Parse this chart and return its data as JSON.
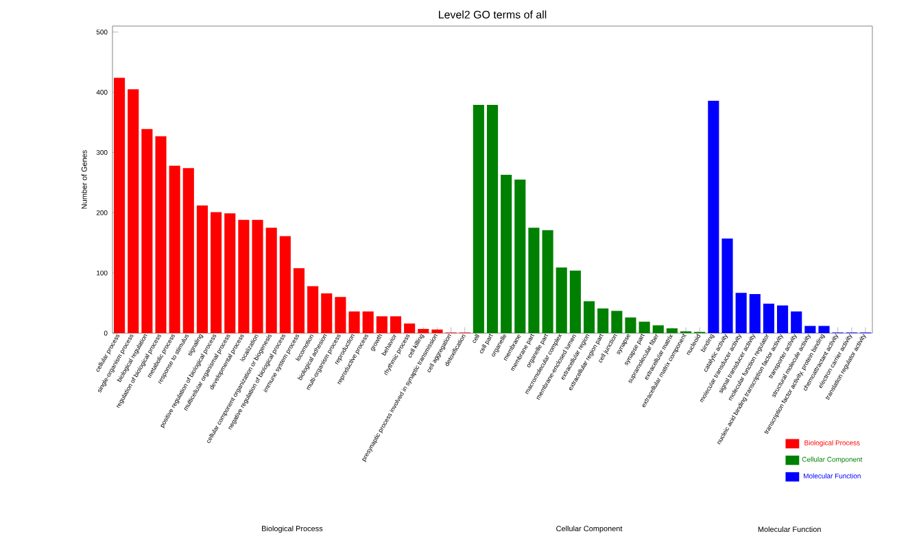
{
  "chart_data": {
    "type": "bar",
    "title": "Level2 GO terms of all",
    "ylabel": "Number of Genes",
    "categories": [
      "cellular process",
      "single-organism process",
      "biological regulation",
      "regulation of biological process",
      "metabolic process",
      "response to stimulus",
      "signaling",
      "positive regulation of biological process",
      "multicellular organismal process",
      "developmental process",
      "localization",
      "cellular component organization or biogenesis",
      "negative regulation of biological process",
      "immune system process",
      "locomotion",
      "biological adhesion",
      "multi-organism process",
      "reproduction",
      "reproductive process",
      "growth",
      "behavior",
      "rhythmic process",
      "cell killing",
      "presynaptic process involved in synaptic transmission",
      "cell aggregation",
      "detoxification",
      "cell",
      "cell part",
      "organelle",
      "membrane",
      "membrane part",
      "organelle part",
      "macromolecular complex",
      "membrane-enclosed lumen",
      "extracellular region",
      "extracellular region part",
      "cell junction",
      "synapse",
      "synapse part",
      "supramolecular fiber",
      "extracellular matrix",
      "extracellular matrix component",
      "nucleoid",
      "binding",
      "catalytic activity",
      "molecular transducer activity",
      "signal transducer activity",
      "molecular function regulator",
      "nucleic acid binding transcription factor activity",
      "transporter activity",
      "structural molecule activity",
      "transcription factor activity, protein binding",
      "chemoattractant activity",
      "electron carrier activity",
      "translation regulator activity"
    ],
    "series": [
      {
        "name": "Biological Process",
        "color": "#ff0000",
        "values": [
          424,
          405,
          339,
          327,
          278,
          274,
          212,
          201,
          199,
          188,
          188,
          175,
          161,
          108,
          78,
          66,
          60,
          36,
          36,
          28,
          28,
          16,
          7,
          6,
          1,
          1,
          null,
          null,
          null,
          null,
          null,
          null,
          null,
          null,
          null,
          null,
          null,
          null,
          null,
          null,
          null,
          null,
          null,
          null,
          null,
          null,
          null,
          null,
          null,
          null,
          null,
          null,
          null,
          null,
          null
        ]
      },
      {
        "name": "Cellular Component",
        "color": "#008000",
        "values": [
          null,
          null,
          null,
          null,
          null,
          null,
          null,
          null,
          null,
          null,
          null,
          null,
          null,
          null,
          null,
          null,
          null,
          null,
          null,
          null,
          null,
          null,
          null,
          null,
          null,
          null,
          379,
          379,
          263,
          255,
          175,
          171,
          109,
          104,
          53,
          41,
          37,
          26,
          19,
          13,
          8,
          3,
          2,
          null,
          null,
          null,
          null,
          null,
          null,
          null,
          null,
          null,
          null,
          null,
          null
        ]
      },
      {
        "name": "Molecular Function",
        "color": "#0000ff",
        "values": [
          null,
          null,
          null,
          null,
          null,
          null,
          null,
          null,
          null,
          null,
          null,
          null,
          null,
          null,
          null,
          null,
          null,
          null,
          null,
          null,
          null,
          null,
          null,
          null,
          null,
          null,
          null,
          null,
          null,
          null,
          null,
          null,
          null,
          null,
          null,
          null,
          null,
          null,
          null,
          null,
          null,
          null,
          null,
          386,
          157,
          67,
          65,
          49,
          46,
          36,
          12,
          12,
          1,
          1,
          1
        ]
      }
    ],
    "annotations": [
      "Biological Process",
      "Cellular Component",
      "Molecular Function"
    ],
    "ylim": [
      0,
      510
    ],
    "yticks": [
      0,
      100,
      200,
      300,
      400,
      500
    ],
    "legend": "bottom right"
  }
}
